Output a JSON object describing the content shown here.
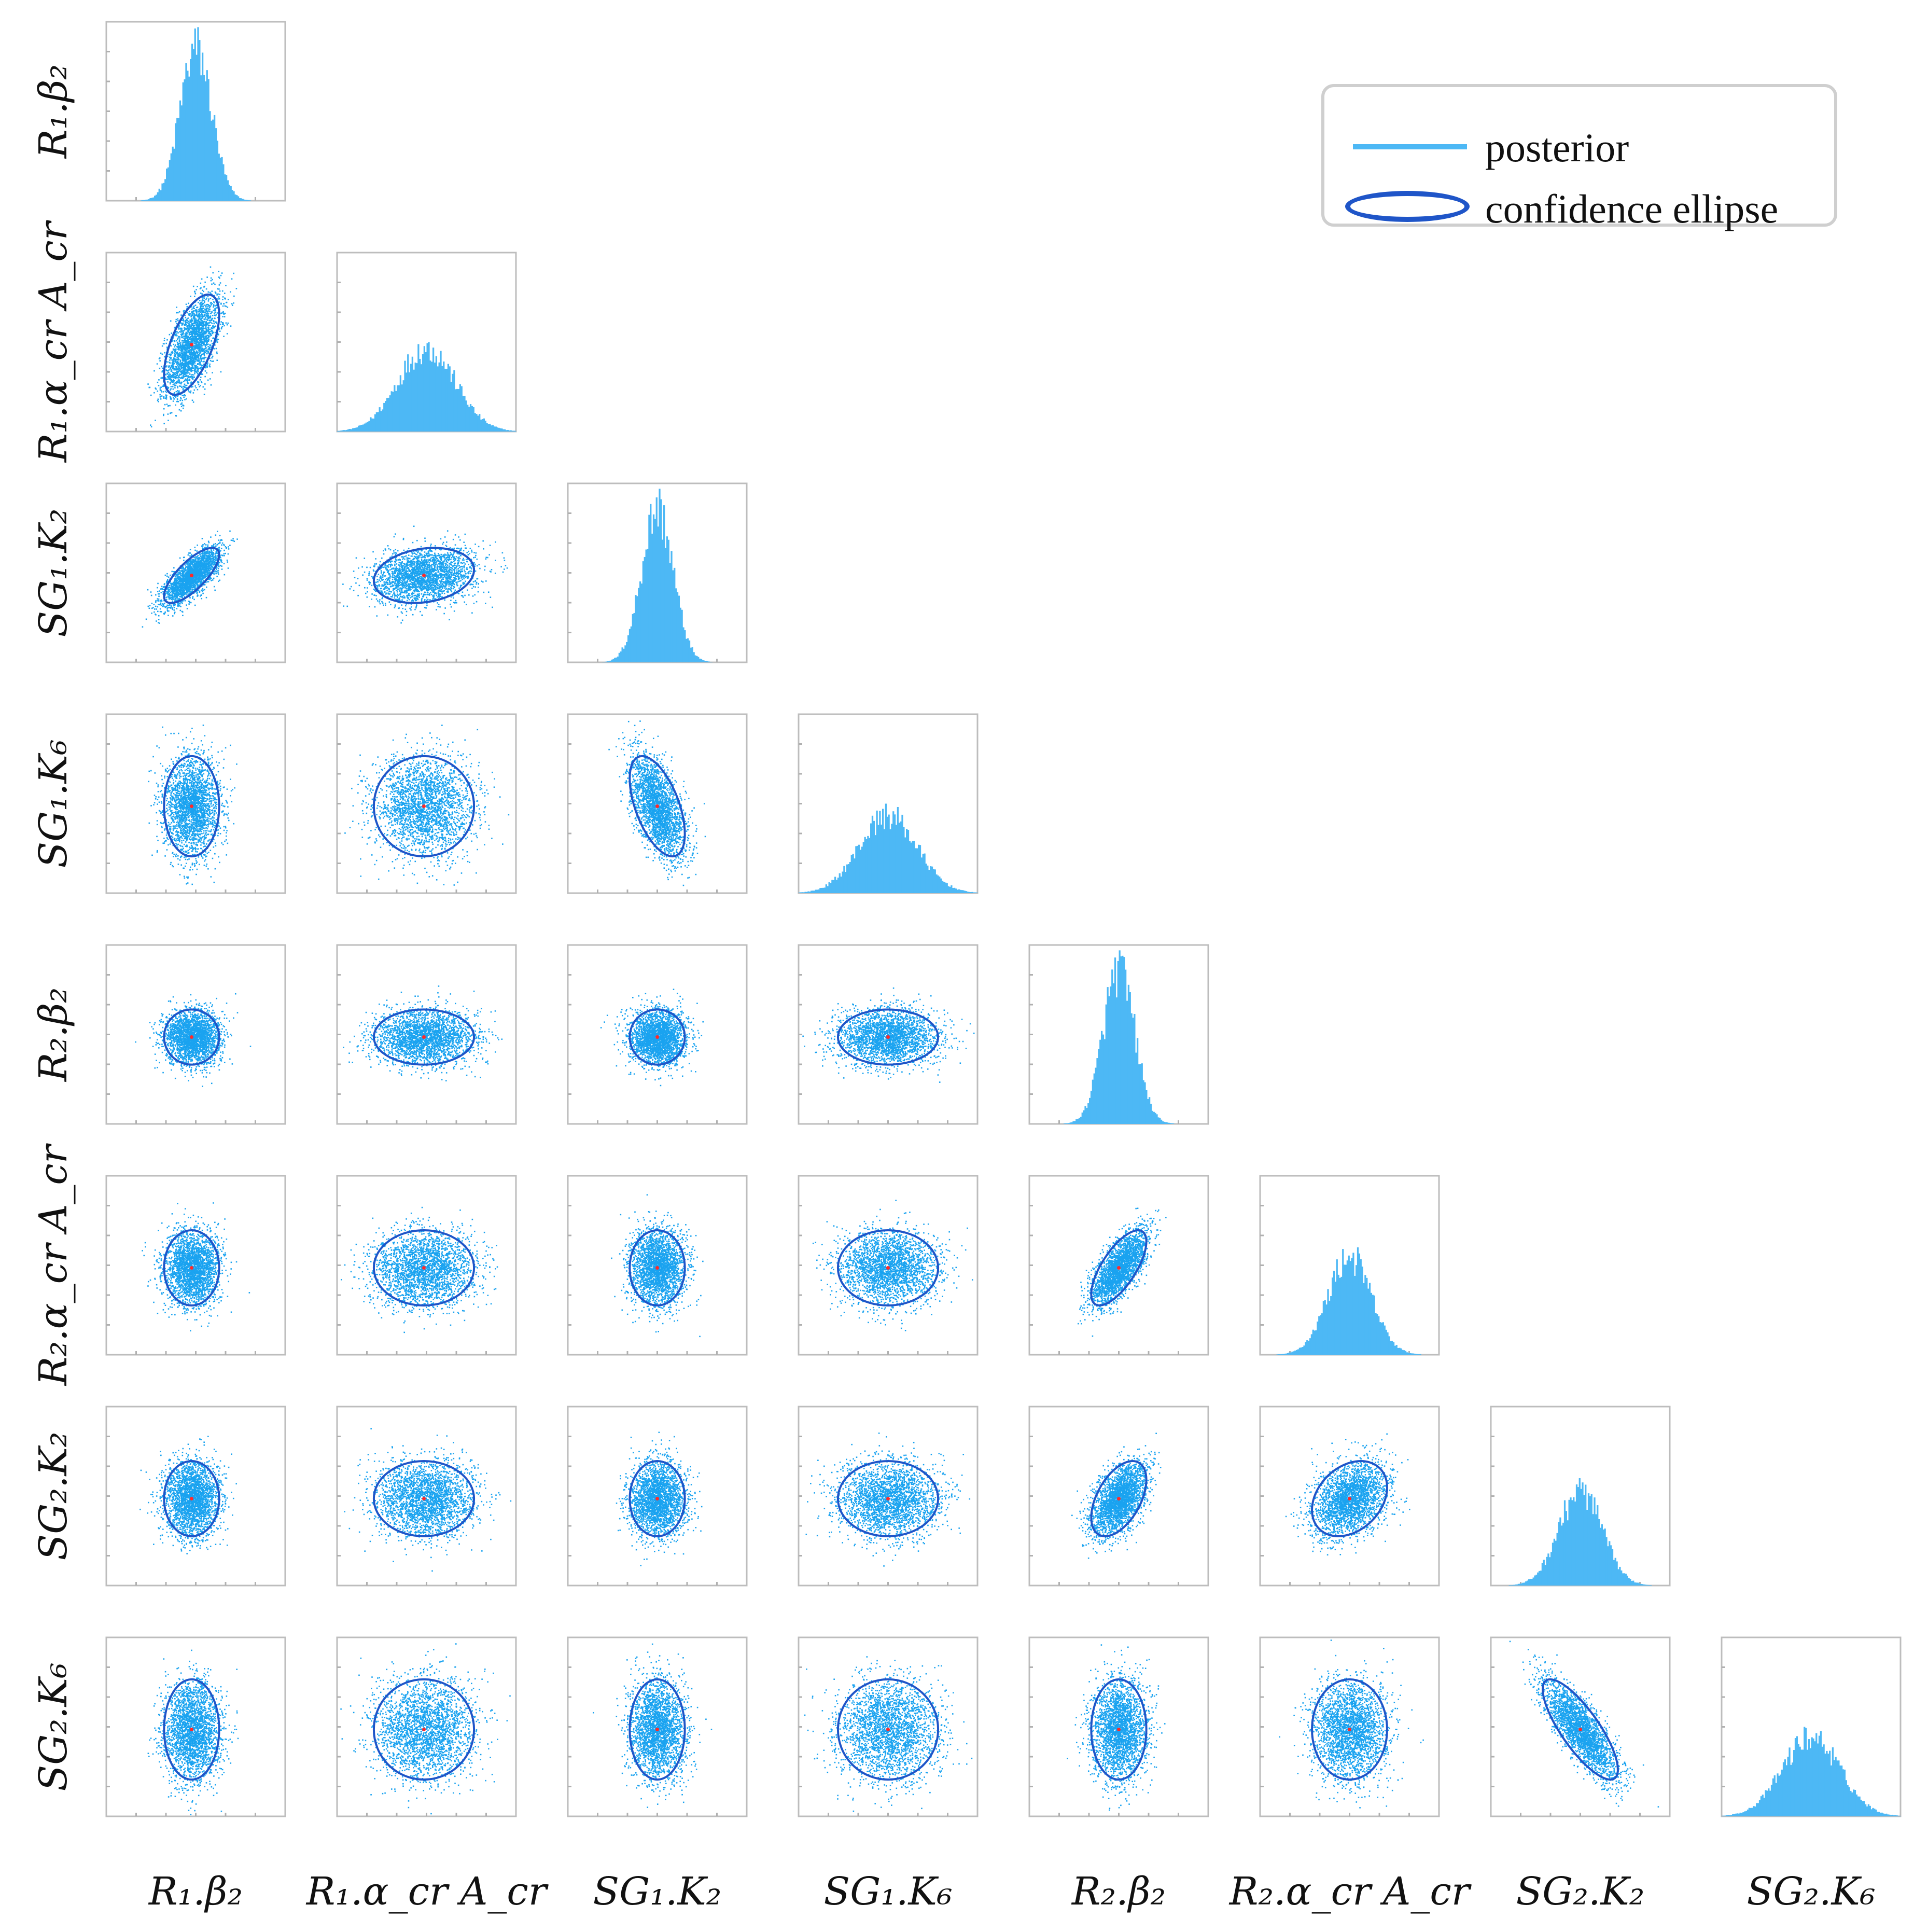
{
  "chart_data": {
    "type": "scatter",
    "subtype": "corner-plot (pairwise scatter with confidence ellipses, marginal histograms on diagonal)",
    "variables": [
      "R₁.β₂",
      "R₁.α_cr A_cr",
      "SG₁.K₂",
      "SG₁.K₆",
      "R₂.β₂",
      "R₂.α_cr A_cr",
      "SG₂.K₂",
      "SG₂.K₆"
    ],
    "legend": {
      "placement": "top-right",
      "entries": [
        {
          "label": "posterior",
          "symbol": "line",
          "color": "#4db8f5"
        },
        {
          "label": "confidence ellipse",
          "symbol": "ellipse",
          "color": "#1f55c8"
        }
      ]
    },
    "correlation_matrix": [
      [
        1.0,
        0.6,
        0.75,
        0.0,
        0.0,
        0.0,
        0.0,
        0.0
      ],
      [
        0.6,
        1.0,
        0.2,
        0.0,
        0.0,
        0.0,
        0.0,
        0.0
      ],
      [
        0.75,
        0.2,
        1.0,
        -0.55,
        0.0,
        0.0,
        0.0,
        0.0
      ],
      [
        0.0,
        0.0,
        -0.55,
        1.0,
        0.0,
        0.0,
        0.0,
        0.0
      ],
      [
        0.0,
        0.0,
        0.0,
        0.0,
        1.0,
        0.7,
        0.5,
        0.0
      ],
      [
        0.0,
        0.0,
        0.0,
        0.0,
        0.7,
        1.0,
        0.3,
        0.0
      ],
      [
        0.0,
        0.0,
        0.0,
        0.0,
        0.5,
        0.3,
        1.0,
        -0.8
      ],
      [
        0.0,
        0.0,
        0.0,
        0.0,
        0.0,
        0.0,
        -0.8,
        1.0
      ]
    ],
    "marginal_spread": [
      0.55,
      1.0,
      0.55,
      1.0,
      0.55,
      0.75,
      0.75,
      1.0
    ],
    "grid": false,
    "colors": {
      "posterior": "#1aa3f0",
      "histogram": "#4db8f5",
      "ellipse": "#1f55c8",
      "mean_marker": "#ff2a2a"
    }
  }
}
